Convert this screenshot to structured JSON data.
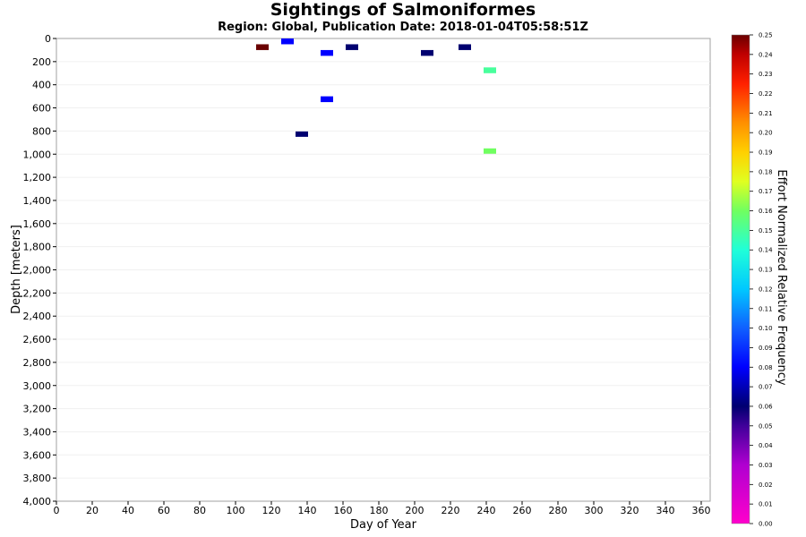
{
  "chart_data": {
    "type": "heatmap",
    "title": "Sightings of Salmoniformes",
    "subtitle": "Region: Global, Publication Date: 2018-01-04T05:58:51Z",
    "xlabel": "Day of Year",
    "ylabel": "Depth [meters]",
    "colorbar_label": "Effort Normalized Relative Frequency",
    "xlim": [
      0,
      365
    ],
    "ylim": [
      0,
      4000
    ],
    "y_inverted": true,
    "x_ticks": [
      "0",
      "20",
      "40",
      "60",
      "80",
      "100",
      "120",
      "140",
      "160",
      "180",
      "200",
      "220",
      "240",
      "260",
      "280",
      "300",
      "320",
      "340",
      "360"
    ],
    "y_ticks": [
      "0",
      "200",
      "400",
      "600",
      "800",
      "1,000",
      "1,200",
      "1,400",
      "1,600",
      "1,800",
      "2,000",
      "2,200",
      "2,400",
      "2,600",
      "2,800",
      "3,000",
      "3,200",
      "3,400",
      "3,600",
      "3,800",
      "4,000"
    ],
    "colorbar_range": [
      0,
      0.25
    ],
    "colorbar_ticks": [
      "0.00",
      "0.01",
      "0.02",
      "0.03",
      "0.04",
      "0.05",
      "0.06",
      "0.07",
      "0.08",
      "0.09",
      "0.10",
      "0.11",
      "0.12",
      "0.13",
      "0.14",
      "0.15",
      "0.16",
      "0.17",
      "0.18",
      "0.19",
      "0.20",
      "0.21",
      "0.22",
      "0.23",
      "0.24",
      "0.25"
    ],
    "cell_size": {
      "days": 7,
      "meters": 50
    },
    "points": [
      {
        "day": 115,
        "depth": 75,
        "value": 0.25
      },
      {
        "day": 129,
        "depth": 25,
        "value": 0.08
      },
      {
        "day": 151,
        "depth": 125,
        "value": 0.08
      },
      {
        "day": 165,
        "depth": 75,
        "value": 0.06
      },
      {
        "day": 207,
        "depth": 125,
        "value": 0.06
      },
      {
        "day": 228,
        "depth": 75,
        "value": 0.06
      },
      {
        "day": 242,
        "depth": 275,
        "value": 0.15
      },
      {
        "day": 151,
        "depth": 525,
        "value": 0.08
      },
      {
        "day": 137,
        "depth": 825,
        "value": 0.06
      },
      {
        "day": 242,
        "depth": 975,
        "value": 0.16
      }
    ]
  }
}
